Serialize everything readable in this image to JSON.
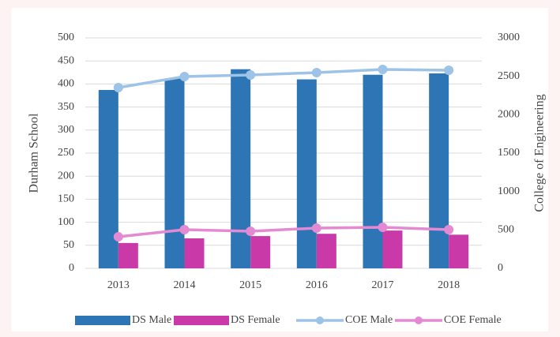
{
  "chart_data": {
    "type": "bar_line",
    "categories": [
      "2013",
      "2014",
      "2015",
      "2016",
      "2017",
      "2018"
    ],
    "ylabel": "Durham School",
    "y2label": "College of Engineering",
    "ylim": [
      0,
      500
    ],
    "yticks": [
      0,
      50,
      100,
      150,
      200,
      250,
      300,
      350,
      400,
      450,
      500
    ],
    "y2lim": [
      0,
      3000
    ],
    "y2ticks": [
      0,
      500,
      1000,
      1500,
      2000,
      2500,
      3000
    ],
    "grid": true,
    "legend": "bottom",
    "series": [
      {
        "name": "DS Male",
        "type": "bar",
        "color": "#2e75b6",
        "values": [
          387,
          412,
          432,
          410,
          420,
          423
        ]
      },
      {
        "name": "DS Female",
        "type": "bar",
        "color": "#c93aa8",
        "values": [
          55,
          65,
          70,
          75,
          82,
          73
        ]
      },
      {
        "name": "COE Male",
        "type": "line",
        "axis": "y2",
        "color": "#9dc3e6",
        "values": [
          2353,
          2497,
          2517,
          2548,
          2589,
          2579
        ]
      },
      {
        "name": "COE Female",
        "type": "line",
        "axis": "y2",
        "color": "#e38ad3",
        "values": [
          411,
          503,
          483,
          524,
          534,
          503
        ]
      }
    ]
  }
}
